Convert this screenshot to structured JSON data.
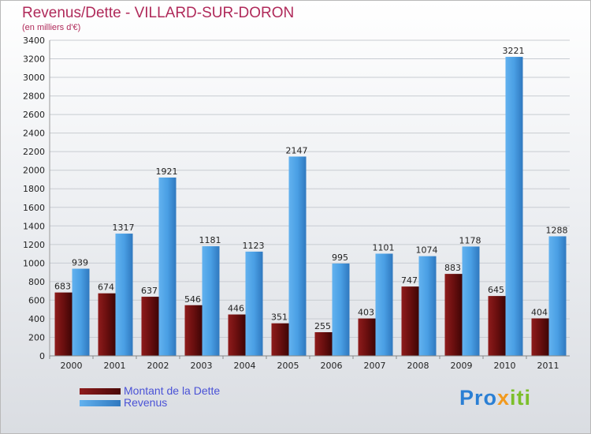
{
  "chart_data": {
    "type": "bar",
    "title": "Revenus/Dette - VILLARD-SUR-DORON",
    "subtitle": "(en milliers d'€)",
    "categories": [
      "2000",
      "2001",
      "2002",
      "2003",
      "2004",
      "2005",
      "2006",
      "2007",
      "2008",
      "2009",
      "2010",
      "2011"
    ],
    "series": [
      {
        "name": "Montant de la Dette",
        "color": "#7a1212",
        "values": [
          683,
          674,
          637,
          546,
          446,
          351,
          255,
          403,
          747,
          883,
          645,
          404
        ]
      },
      {
        "name": "Revenus",
        "color": "#4fa3e6",
        "values": [
          939,
          1317,
          1921,
          1181,
          1123,
          2147,
          995,
          1101,
          1074,
          1178,
          3221,
          1288
        ]
      }
    ],
    "ylim": [
      0,
      3400
    ],
    "ytick_step": 200,
    "grid": true,
    "legend": "bottom-left"
  },
  "logo": {
    "part1": "Pro",
    "part2": "x",
    "part3": "iti"
  }
}
